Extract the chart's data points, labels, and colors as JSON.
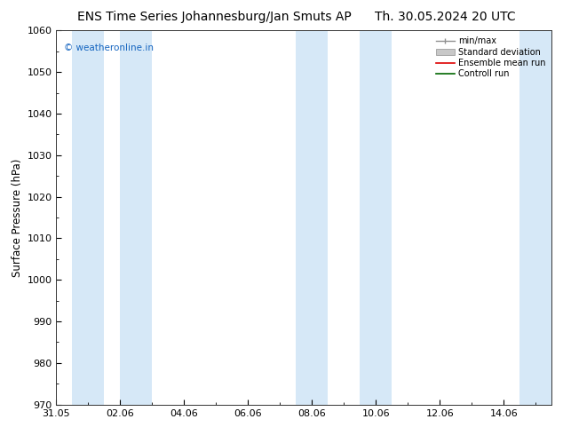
{
  "title_left": "ENS Time Series Johannesburg/Jan Smuts AP",
  "title_right": "Th. 30.05.2024 20 UTC",
  "ylabel": "Surface Pressure (hPa)",
  "ylim": [
    970,
    1060
  ],
  "yticks": [
    970,
    980,
    990,
    1000,
    1010,
    1020,
    1030,
    1040,
    1050,
    1060
  ],
  "xtick_labels": [
    "31.05",
    "02.06",
    "04.06",
    "06.06",
    "08.06",
    "10.06",
    "12.06",
    "14.06"
  ],
  "xtick_positions": [
    0,
    2,
    4,
    6,
    8,
    10,
    12,
    14
  ],
  "xlim": [
    0,
    15.5
  ],
  "shaded_bands": [
    {
      "start": 0.5,
      "end": 1.5
    },
    {
      "start": 2.0,
      "end": 3.0
    },
    {
      "start": 7.5,
      "end": 8.5
    },
    {
      "start": 9.5,
      "end": 10.5
    },
    {
      "start": 14.5,
      "end": 15.5
    }
  ],
  "shade_color": "#d6e8f7",
  "watermark": "© weatheronline.in",
  "watermark_color": "#1565c0",
  "legend_labels": [
    "min/max",
    "Standard deviation",
    "Ensemble mean run",
    "Controll run"
  ],
  "legend_line_colors": [
    "#a0a0a0",
    "#b8b8b8",
    "#ff0000",
    "#008000"
  ],
  "background_color": "#ffffff",
  "title_fontsize": 10,
  "tick_fontsize": 8,
  "ylabel_fontsize": 8.5
}
